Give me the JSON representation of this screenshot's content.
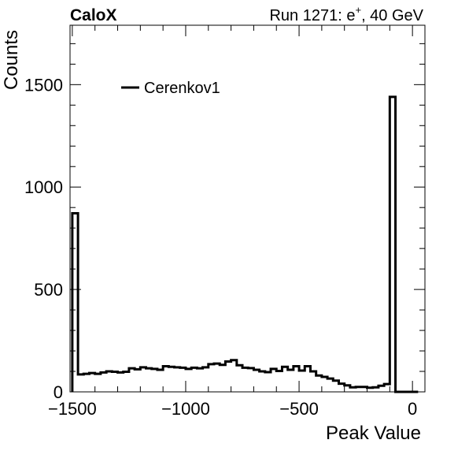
{
  "header": {
    "left_label": "CaloX",
    "right_prefix": "Run 1271: e",
    "right_sup": "+",
    "right_suffix": ", 40 GeV"
  },
  "chart_data": {
    "type": "histogram",
    "xlabel": "Peak Value",
    "ylabel": "Counts",
    "xlim": [
      -1510,
      55
    ],
    "ylim": [
      0,
      1790
    ],
    "x_ticks": [
      -1500,
      -1000,
      -500,
      0
    ],
    "x_tick_labels": [
      "−1500",
      "−1000",
      "−500",
      "0"
    ],
    "y_ticks": [
      0,
      500,
      1000,
      1500
    ],
    "y_tick_labels": [
      "0",
      "500",
      "1000",
      "1500"
    ],
    "grid": false,
    "legend_position": "top-left",
    "series": [
      {
        "name": "Cerenkov1",
        "color": "#000000",
        "bin_edges": [
          -1500,
          -1475,
          -1450,
          -1425,
          -1400,
          -1375,
          -1350,
          -1325,
          -1300,
          -1275,
          -1250,
          -1225,
          -1200,
          -1175,
          -1150,
          -1125,
          -1100,
          -1075,
          -1050,
          -1025,
          -1000,
          -975,
          -950,
          -925,
          -900,
          -875,
          -850,
          -825,
          -800,
          -775,
          -750,
          -725,
          -700,
          -675,
          -650,
          -625,
          -600,
          -575,
          -550,
          -525,
          -500,
          -475,
          -450,
          -425,
          -400,
          -375,
          -350,
          -325,
          -300,
          -275,
          -250,
          -225,
          -200,
          -175,
          -150,
          -125,
          -100,
          -75,
          -50,
          -25,
          0,
          25
        ],
        "counts": [
          872,
          85,
          88,
          92,
          88,
          95,
          100,
          98,
          95,
          98,
          115,
          110,
          120,
          115,
          112,
          108,
          125,
          122,
          120,
          118,
          112,
          118,
          115,
          120,
          135,
          138,
          132,
          148,
          155,
          130,
          118,
          116,
          108,
          100,
          96,
          112,
          102,
          122,
          108,
          125,
          104,
          125,
          100,
          80,
          73,
          65,
          55,
          40,
          32,
          22,
          24,
          24,
          20,
          22,
          30,
          38,
          1440,
          0,
          0,
          0,
          0
        ]
      }
    ]
  }
}
